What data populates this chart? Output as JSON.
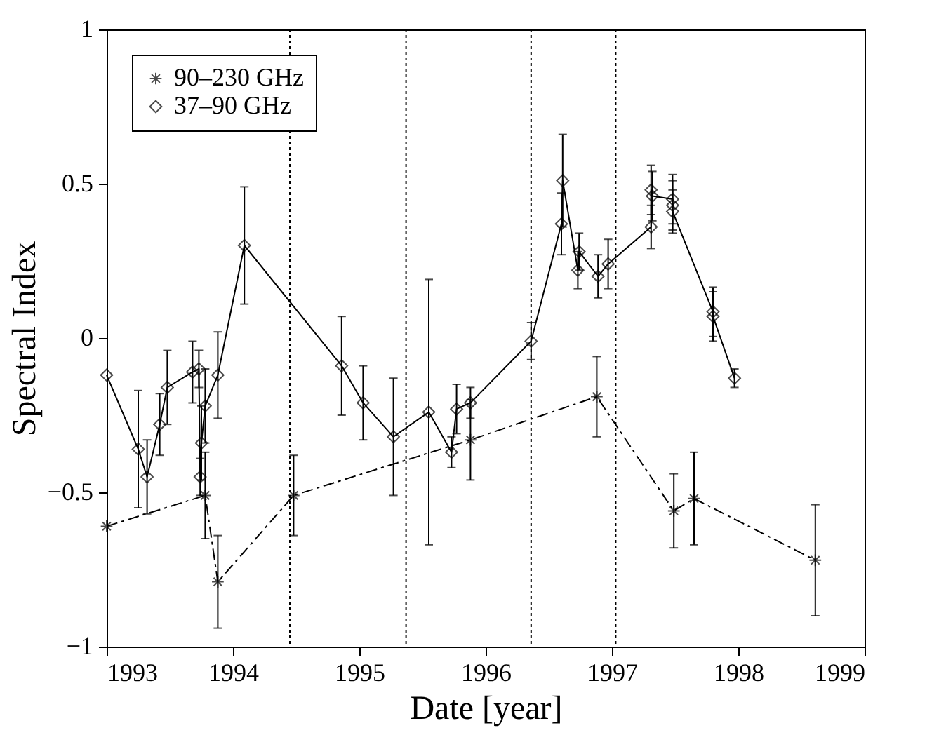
{
  "chart_data": {
    "type": "line",
    "xlabel": "Date [year]",
    "ylabel": "Spectral Index",
    "xlim": [
      1993,
      1999
    ],
    "xticks": [
      1993,
      1994,
      1995,
      1996,
      1997,
      1998,
      1999
    ],
    "ylim": [
      -1,
      1
    ],
    "yticks": [
      -1,
      -0.5,
      0,
      0.5,
      1
    ],
    "grid": false,
    "legend": "top left",
    "series": [
      {
        "name": "90–230 GHz",
        "color": "#000000",
        "marker": "cross",
        "line_style": "dashed",
        "x": [
          1993.0,
          1993.78,
          1993.88,
          1994.48,
          1995.88,
          1996.88,
          1997.49,
          1997.65,
          1998.61
        ],
        "values": [
          -0.61,
          -0.51,
          -0.79,
          -0.51,
          -0.33,
          -0.19,
          -0.56,
          -0.52,
          -0.72
        ],
        "errors": [
          null,
          0.14,
          0.15,
          0.13,
          0.13,
          0.13,
          0.12,
          0.15,
          0.18
        ]
      },
      {
        "name": "37–90 GHz",
        "color": "#000000",
        "marker": "diamond",
        "line_style": "solid",
        "x": [
          1993.0,
          1993.25,
          1993.32,
          1993.42,
          1993.48,
          1993.68,
          1993.73,
          1993.74,
          1993.75,
          1993.78,
          1993.88,
          1994.09,
          1994.86,
          1995.03,
          1995.27,
          1995.55,
          1995.73,
          1995.77,
          1995.88,
          1996.36,
          1996.6,
          1996.61,
          1996.73,
          1996.74,
          1996.89,
          1996.97,
          1997.31,
          1997.31,
          1997.32,
          1997.48,
          1997.48,
          1997.48,
          1997.8,
          1997.8,
          1997.97
        ],
        "values": [
          -0.12,
          -0.36,
          -0.45,
          -0.28,
          -0.16,
          -0.11,
          -0.1,
          -0.45,
          -0.34,
          -0.22,
          -0.12,
          0.3,
          -0.09,
          -0.21,
          -0.32,
          -0.24,
          -0.37,
          -0.23,
          -0.21,
          -0.01,
          0.37,
          0.51,
          0.22,
          0.28,
          0.2,
          0.24,
          0.36,
          0.48,
          0.46,
          0.45,
          0.43,
          0.41,
          0.085,
          0.07,
          -0.13
        ],
        "errors": [
          null,
          0.19,
          0.12,
          0.1,
          0.12,
          0.1,
          0.06,
          0.06,
          0.12,
          0.12,
          0.14,
          0.19,
          0.16,
          0.12,
          0.19,
          0.43,
          0.05,
          0.08,
          0.05,
          0.06,
          0.1,
          0.15,
          0.06,
          0.06,
          0.07,
          0.08,
          0.07,
          0.08,
          0.08,
          0.08,
          0.08,
          0.07,
          0.08,
          0.08,
          0.03
        ]
      }
    ],
    "ref_lines": [
      {
        "axis": "x",
        "value": 1994.45,
        "line_style": "dotted"
      },
      {
        "axis": "x",
        "value": 1995.37,
        "line_style": "dotted"
      },
      {
        "axis": "x",
        "value": 1996.36,
        "line_style": "dotted"
      },
      {
        "axis": "x",
        "value": 1997.03,
        "line_style": "dotted"
      }
    ]
  }
}
